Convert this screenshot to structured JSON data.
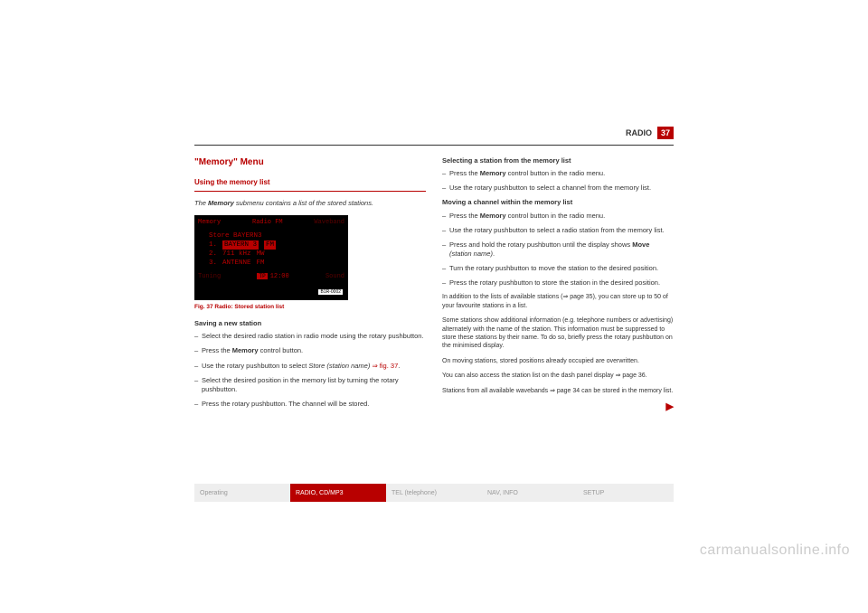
{
  "header": {
    "section": "RADIO",
    "page": "37"
  },
  "left": {
    "title": "\"Memory\" Menu",
    "subtitle": "Using the memory list",
    "intro_pre": "The ",
    "intro_bold": "Memory",
    "intro_post": " submenu contains a list of the stored stations.",
    "fig": {
      "top_left": "Memory",
      "top_mid": "Radio FM",
      "top_right": "Waveband",
      "store": "Store BAYERN3",
      "r1a": "1.",
      "r1b": "BAYERN 3",
      "r1c": "FM",
      "r2a": "2.",
      "r2b": "711 kHz",
      "r2c": "MW",
      "r3a": "3.",
      "r3b": "ANTENNE",
      "r3c": "FM",
      "bot_left": "Tuning",
      "tp": "TP",
      "time": "12:00",
      "bot_right": "Sound",
      "badge": "B1R-0002"
    },
    "figcap": "Fig. 37  Radio: Stored station list",
    "save_h": "Saving a new station",
    "b1": "Select the desired radio station in radio mode using the rotary pushbutton.",
    "b2_pre": "Press the ",
    "b2_bold": "Memory",
    "b2_post": " control button.",
    "b3_pre": "Use the rotary pushbutton to select ",
    "b3_i": "Store (station name)",
    "b3_link": " ⇒ fig. 37",
    "b3_post": ".",
    "b4": "Select the desired position in the memory list by turning the rotary pushbutton.",
    "b5": "Press the rotary pushbutton. The channel will be stored."
  },
  "right": {
    "sel_h": "Selecting a station from the memory list",
    "s1_pre": "Press the ",
    "s1_bold": "Memory",
    "s1_post": " control button in the radio menu.",
    "s2": "Use the rotary pushbutton to select a channel from the memory list.",
    "mov_h": "Moving a channel within the memory list",
    "m1_pre": "Press the ",
    "m1_bold": "Memory",
    "m1_post": " control button in the radio menu.",
    "m2": "Use the rotary pushbutton to select a radio station from the memory list.",
    "m3_pre": "Press and hold the rotary pushbutton until the display shows ",
    "m3_bold": "Move",
    "m3_i": " (station name)",
    "m3_post": ".",
    "m4": "Turn the rotary pushbutton to move the station to the desired position.",
    "m5": "Press the rotary pushbutton to store the station in the desired position.",
    "p1": "In addition to the lists of available stations (⇒ page 35), you can store up to 50 of your favourite stations in a list.",
    "p2": "Some stations show additional information (e.g. telephone numbers or advertising) alternately with the name of the station. This information must be suppressed to store these stations by their name. To do so, briefly press the rotary pushbutton on the minimised display.",
    "p3": "On moving stations, stored positions already occupied are overwritten.",
    "p4": "You can also access the station list on the dash panel display ⇒ page 36.",
    "p5": "Stations from all available wavebands ⇒ page 34 can be stored in the memory list."
  },
  "tabs": {
    "t1": "Operating",
    "t2": "RADIO, CD/MP3",
    "t3": "TEL (telephone)",
    "t4": "NAV, INFO",
    "t5": "SETUP"
  },
  "watermark": "carmanualsonline.info",
  "arrow": "▶"
}
